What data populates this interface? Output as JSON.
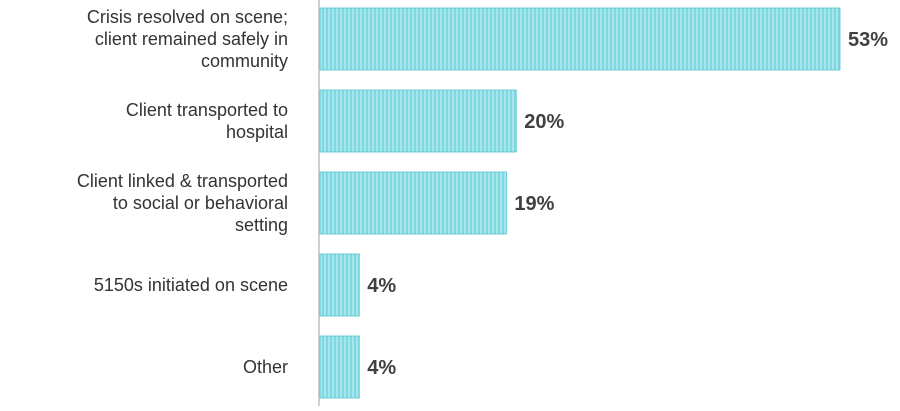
{
  "chart_data": {
    "type": "bar",
    "orientation": "horizontal",
    "categories": [
      [
        "Crisis resolved on scene;",
        "client remained safely in",
        "community"
      ],
      [
        "Client transported to",
        "hospital"
      ],
      [
        "Client linked & transported",
        "to social or behavioral",
        "setting"
      ],
      [
        "5150s initiated on scene"
      ],
      [
        "Other"
      ]
    ],
    "values": [
      53,
      20,
      19,
      4,
      4
    ],
    "value_labels": [
      "53%",
      "20%",
      "19%",
      "4%",
      "4%"
    ],
    "unit": "%",
    "xlim": [
      0,
      53
    ],
    "grid": false,
    "legend": "none",
    "bar_color": "#7fd8e0",
    "bar_stripe_color": "#a6e6ec",
    "bar_edge_color": "#55c3cf",
    "axis_color": "#bfbfbf"
  }
}
